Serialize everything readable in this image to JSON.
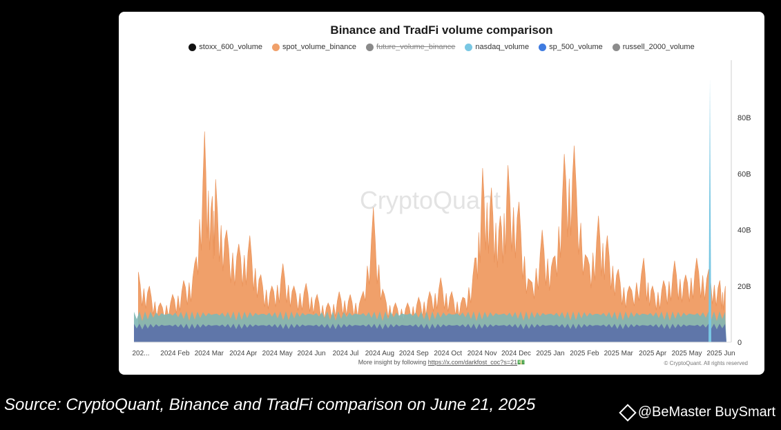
{
  "chart_data": {
    "type": "area",
    "title": "Binance and TradFi volume comparison",
    "watermark": "CryptoQuant",
    "legend": [
      {
        "name": "stoxx_600_volume",
        "color": "#111111",
        "hidden": false
      },
      {
        "name": "spot_volume_binance",
        "color": "#f0a06a",
        "hidden": false
      },
      {
        "name": "future_volume_binance",
        "color": "#8a8a8a",
        "hidden": true
      },
      {
        "name": "nasdaq_volume",
        "color": "#79c7e3",
        "hidden": false
      },
      {
        "name": "sp_500_volume",
        "color": "#3f7be0",
        "hidden": false
      },
      {
        "name": "russell_2000_volume",
        "color": "#8c8c8c",
        "hidden": false
      }
    ],
    "legend_position": "top",
    "x_tick_labels": [
      "202...",
      "2024 Feb",
      "2024 Mar",
      "2024 Apr",
      "2024 May",
      "2024 Jun",
      "2024 Jul",
      "2024 Aug",
      "2024 Sep",
      "2024 Oct",
      "2024 Nov",
      "2024 Dec",
      "2025 Jan",
      "2025 Feb",
      "2025 Mar",
      "2025 Apr",
      "2025 May",
      "2025 Jun"
    ],
    "y_tick_labels": [
      "0",
      "20B",
      "40B",
      "60B",
      "80B"
    ],
    "y_ticks": [
      0,
      20,
      40,
      60,
      80
    ],
    "ylim": [
      0,
      96
    ],
    "y_axis_side": "right",
    "spot_volume_binance": [
      {
        "x": "2024-01-05",
        "y": 25
      },
      {
        "x": "2024-01-15",
        "y": 20
      },
      {
        "x": "2024-01-25",
        "y": 14
      },
      {
        "x": "2024-02-05",
        "y": 17
      },
      {
        "x": "2024-02-15",
        "y": 22
      },
      {
        "x": "2024-02-25",
        "y": 28
      },
      {
        "x": "2024-03-05",
        "y": 75
      },
      {
        "x": "2024-03-12",
        "y": 52
      },
      {
        "x": "2024-03-15",
        "y": 58
      },
      {
        "x": "2024-03-25",
        "y": 40
      },
      {
        "x": "2024-04-05",
        "y": 35
      },
      {
        "x": "2024-04-15",
        "y": 38
      },
      {
        "x": "2024-04-25",
        "y": 24
      },
      {
        "x": "2024-05-05",
        "y": 20
      },
      {
        "x": "2024-05-15",
        "y": 28
      },
      {
        "x": "2024-05-25",
        "y": 20
      },
      {
        "x": "2024-06-05",
        "y": 21
      },
      {
        "x": "2024-06-15",
        "y": 17
      },
      {
        "x": "2024-06-25",
        "y": 14
      },
      {
        "x": "2024-07-05",
        "y": 18
      },
      {
        "x": "2024-07-15",
        "y": 17
      },
      {
        "x": "2024-07-25",
        "y": 16
      },
      {
        "x": "2024-08-05",
        "y": 48
      },
      {
        "x": "2024-08-15",
        "y": 17
      },
      {
        "x": "2024-08-25",
        "y": 14
      },
      {
        "x": "2024-09-05",
        "y": 14
      },
      {
        "x": "2024-09-15",
        "y": 16
      },
      {
        "x": "2024-09-25",
        "y": 18
      },
      {
        "x": "2024-10-05",
        "y": 23
      },
      {
        "x": "2024-10-15",
        "y": 18
      },
      {
        "x": "2024-10-25",
        "y": 16
      },
      {
        "x": "2024-11-05",
        "y": 30
      },
      {
        "x": "2024-11-12",
        "y": 62
      },
      {
        "x": "2024-11-20",
        "y": 55
      },
      {
        "x": "2024-11-28",
        "y": 45
      },
      {
        "x": "2024-12-05",
        "y": 63
      },
      {
        "x": "2024-12-15",
        "y": 50
      },
      {
        "x": "2024-12-25",
        "y": 22
      },
      {
        "x": "2025-01-05",
        "y": 40
      },
      {
        "x": "2025-01-15",
        "y": 30
      },
      {
        "x": "2025-01-25",
        "y": 67
      },
      {
        "x": "2025-02-03",
        "y": 70
      },
      {
        "x": "2025-02-15",
        "y": 30
      },
      {
        "x": "2025-02-25",
        "y": 45
      },
      {
        "x": "2025-03-05",
        "y": 38
      },
      {
        "x": "2025-03-15",
        "y": 26
      },
      {
        "x": "2025-03-25",
        "y": 20
      },
      {
        "x": "2025-04-07",
        "y": 30
      },
      {
        "x": "2025-04-15",
        "y": 20
      },
      {
        "x": "2025-04-25",
        "y": 22
      },
      {
        "x": "2025-05-05",
        "y": 29
      },
      {
        "x": "2025-05-15",
        "y": 24
      },
      {
        "x": "2025-05-25",
        "y": 30
      },
      {
        "x": "2025-06-05",
        "y": 26
      },
      {
        "x": "2025-06-15",
        "y": 22
      },
      {
        "x": "2025-06-20",
        "y": 20
      }
    ],
    "nasdaq_volume_spike": {
      "x": "2025-06-06",
      "y": 94
    },
    "baseline_levels": {
      "future_band_approx": 10,
      "tradfi_band_approx": 6
    }
  },
  "footer": {
    "note_prefix": "More insight by following",
    "note_link": "https://x.com/darkfost_coc?s=21",
    "note_suffix": "💵",
    "copyright": "© CryptoQuant. All rights reserved"
  },
  "caption": {
    "source": "Source: CryptoQuant, Binance and TradFi comparison on June 21, 2025",
    "brand": "@BeMaster BuySmart"
  },
  "colors": {
    "spot": "#f0a06a",
    "teal_band": "#7fb7b5",
    "navy_band": "#5a6fa8",
    "nasdaq": "#79c7e3"
  }
}
